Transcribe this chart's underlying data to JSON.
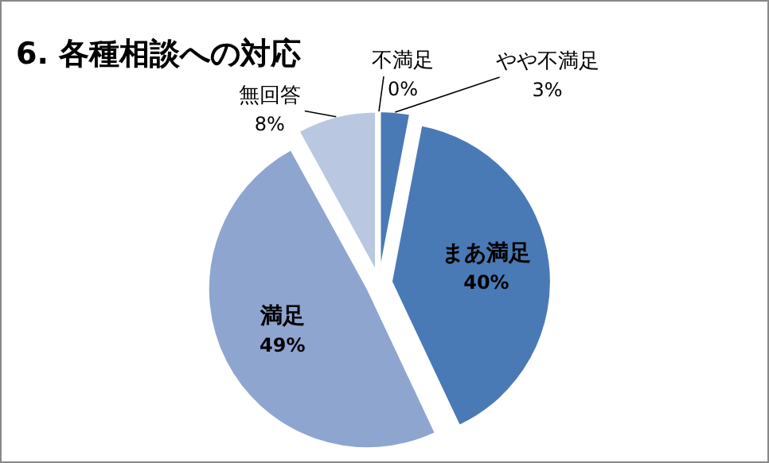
{
  "chart_data": {
    "type": "pie",
    "title": "6. 各種相談への対応",
    "categories": [
      "不満足",
      "やや不満足",
      "まあ満足",
      "満足",
      "無回答"
    ],
    "values": [
      0,
      3,
      40,
      49,
      8
    ],
    "value_labels": [
      "0%",
      "3%",
      "40%",
      "49%",
      "8%"
    ],
    "colors": [
      "#4f81bd",
      "#4a7ab5",
      "#4a7ab5",
      "#8ea5cf",
      "#b9c8e0"
    ]
  }
}
